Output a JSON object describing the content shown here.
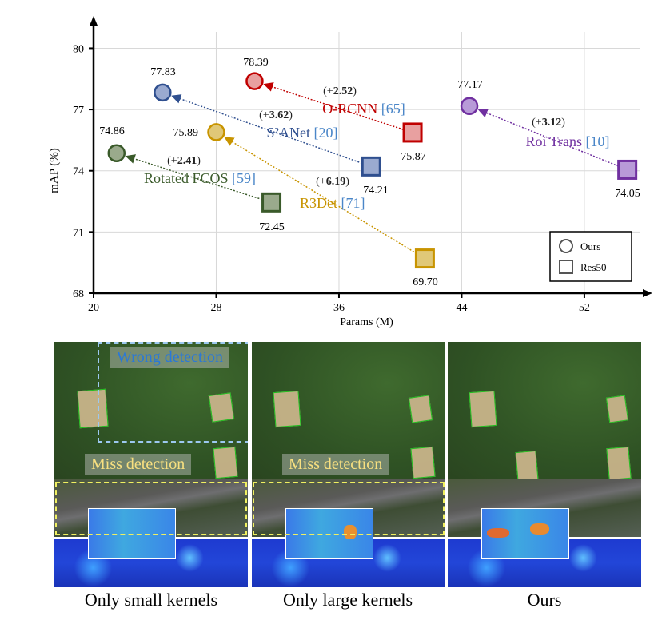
{
  "chart_data": {
    "type": "scatter",
    "xlabel": "Params (M)",
    "ylabel": "mAP (%)",
    "xlim": [
      20,
      55.6
    ],
    "ylim": [
      68,
      80.8
    ],
    "xticks": [
      20,
      28,
      36,
      44,
      52
    ],
    "yticks": [
      68,
      71,
      74,
      77,
      80
    ],
    "grid": true,
    "legend": {
      "position": "bottom-right",
      "entries": [
        {
          "marker": "circle",
          "label": "Ours"
        },
        {
          "marker": "square",
          "label": "Res50"
        }
      ]
    },
    "series": [
      {
        "name": "O-RCNN",
        "ref": "[65]",
        "color": "#c00000",
        "fill": "#e8a0a0",
        "ours": {
          "x": 30.5,
          "y": 78.39,
          "label": "78.39"
        },
        "res50": {
          "x": 40.8,
          "y": 75.87,
          "label": "75.87"
        },
        "gain": "+2.52"
      },
      {
        "name": "S²ANet",
        "ref": "[20]",
        "color": "#2f4f8f",
        "fill": "#9aaad0",
        "ours": {
          "x": 24.5,
          "y": 77.83,
          "label": "77.83"
        },
        "res50": {
          "x": 38.1,
          "y": 74.21,
          "label": "74.21"
        },
        "gain": "+3.62"
      },
      {
        "name": "Roi Trans",
        "ref": "[10]",
        "color": "#7030a0",
        "fill": "#b89ad8",
        "ours": {
          "x": 44.5,
          "y": 77.17,
          "label": "77.17"
        },
        "res50": {
          "x": 54.8,
          "y": 74.05,
          "label": "74.05"
        },
        "gain": "+3.12"
      },
      {
        "name": "Rotated FCOS",
        "ref": "[59]",
        "color": "#3a5a2a",
        "fill": "#9aaa8c",
        "ours": {
          "x": 21.5,
          "y": 74.86,
          "label": "74.86"
        },
        "res50": {
          "x": 31.6,
          "y": 72.45,
          "label": "72.45"
        },
        "gain": "+2.41"
      },
      {
        "name": "R3Det",
        "ref": "[71]",
        "color": "#c89400",
        "fill": "#e0c878",
        "ours": {
          "x": 28.0,
          "y": 75.89,
          "label": "75.89"
        },
        "res50": {
          "x": 41.6,
          "y": 69.7,
          "label": "69.70"
        },
        "gain": "+6.19"
      }
    ],
    "ref_color": "#4a86c8"
  },
  "panels": [
    {
      "caption": "Only small kernels",
      "callouts": [
        "Wrong detection",
        "Miss detection"
      ]
    },
    {
      "caption": "Only large kernels",
      "callouts": [
        "Miss detection"
      ]
    },
    {
      "caption": "Ours",
      "callouts": []
    }
  ]
}
